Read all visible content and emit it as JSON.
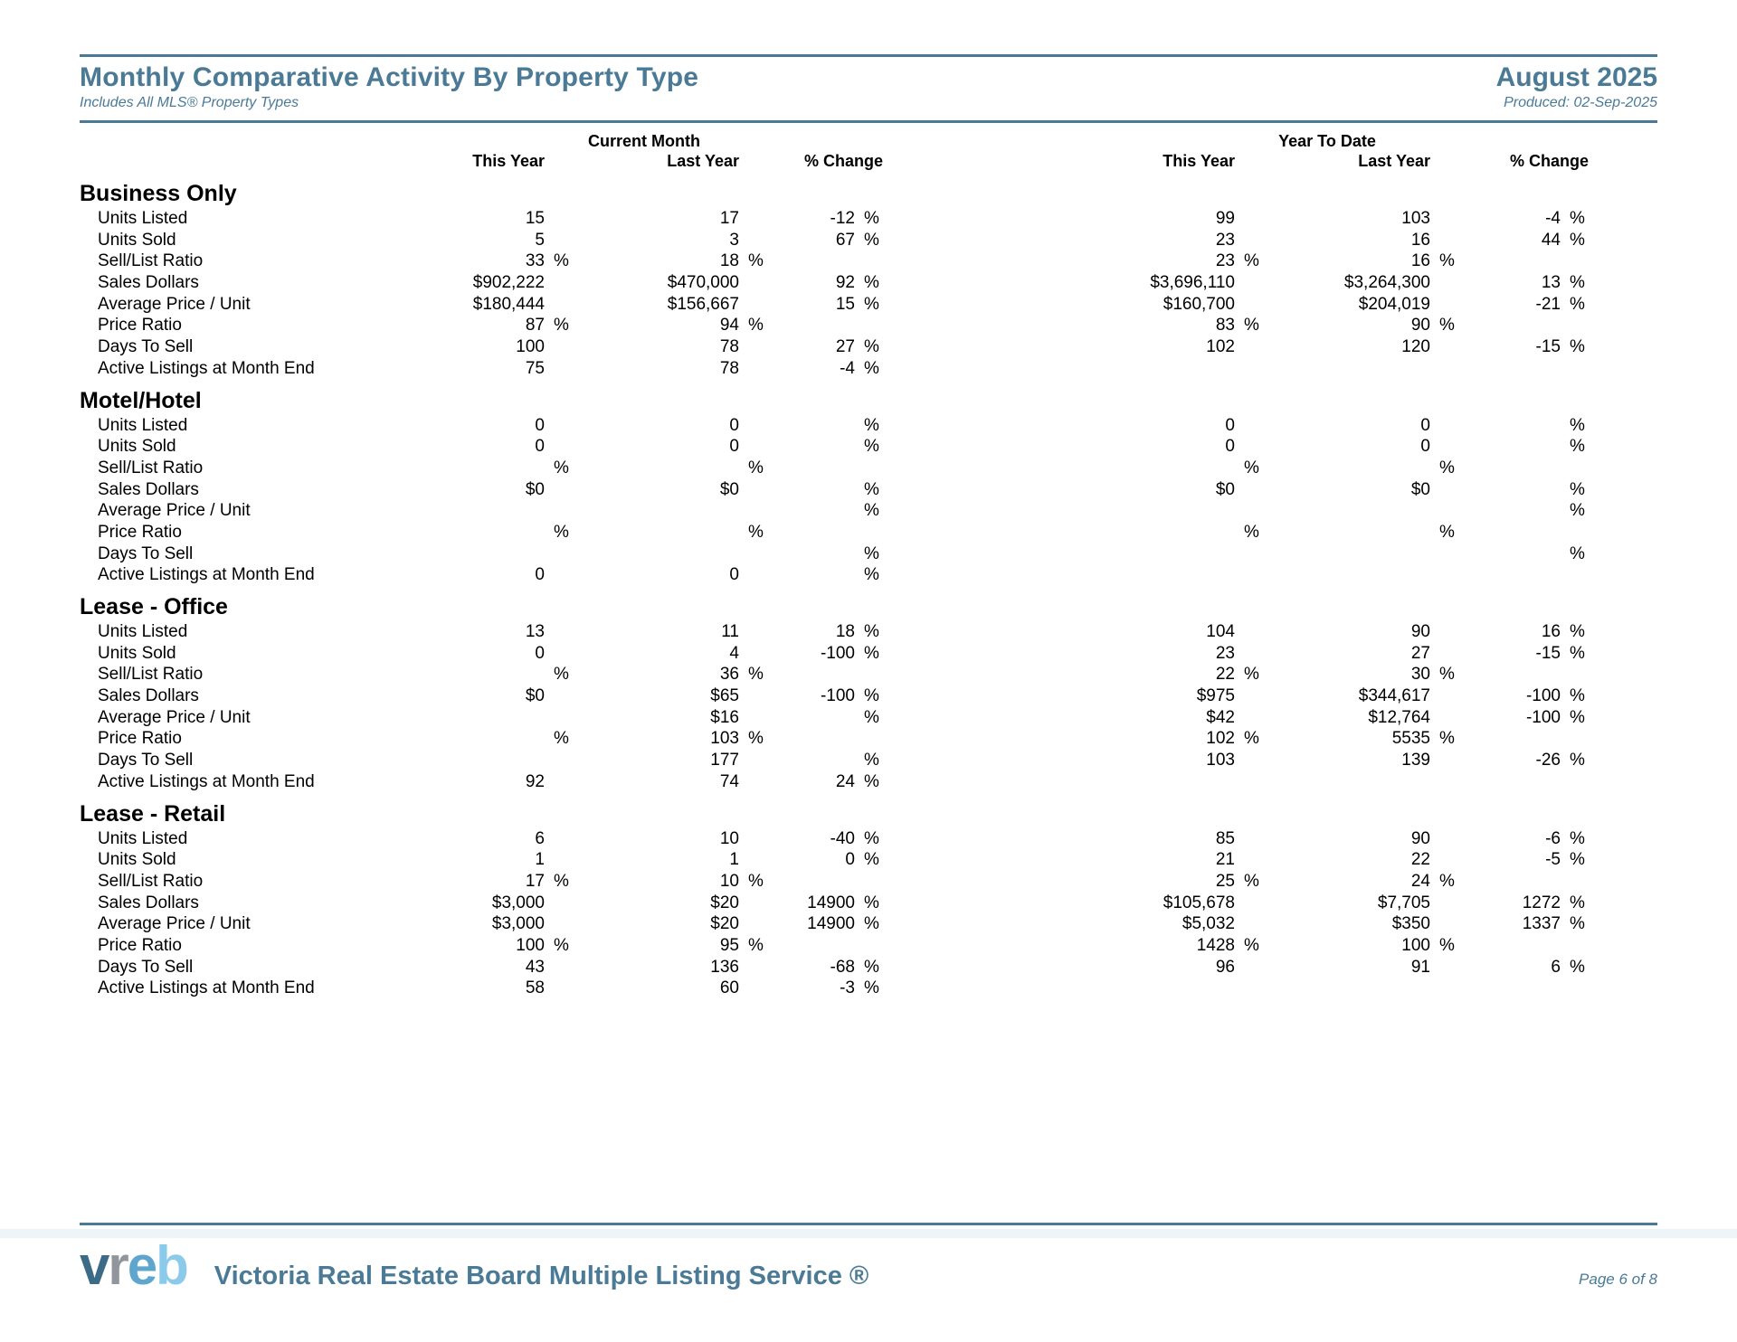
{
  "theme": {
    "accent": "#4a7a96"
  },
  "page": {
    "title": "Monthly Comparative Activity By Property Type",
    "subtitle": "Includes All MLS® Property Types",
    "period": "August 2025",
    "produced": "Produced: 02-Sep-2025"
  },
  "table": {
    "groups": [
      "Current Month",
      "Year To Date"
    ],
    "columns": [
      "This Year",
      "Last Year",
      "% Change"
    ],
    "sections": [
      {
        "name": "Business Only",
        "rows": [
          {
            "label": "Units Listed",
            "cm": [
              [
                "15",
                ""
              ],
              [
                "17",
                ""
              ],
              [
                "-12",
                "%"
              ]
            ],
            "ytd": [
              [
                "99",
                ""
              ],
              [
                "103",
                ""
              ],
              [
                "-4",
                "%"
              ]
            ]
          },
          {
            "label": "Units Sold",
            "cm": [
              [
                "5",
                ""
              ],
              [
                "3",
                ""
              ],
              [
                "67",
                "%"
              ]
            ],
            "ytd": [
              [
                "23",
                ""
              ],
              [
                "16",
                ""
              ],
              [
                "44",
                "%"
              ]
            ]
          },
          {
            "label": "Sell/List Ratio",
            "cm": [
              [
                "33",
                "%"
              ],
              [
                "18",
                "%"
              ],
              [
                "",
                ""
              ]
            ],
            "ytd": [
              [
                "23",
                "%"
              ],
              [
                "16",
                "%"
              ],
              [
                "",
                ""
              ]
            ]
          },
          {
            "label": "Sales Dollars",
            "cm": [
              [
                "$902,222",
                ""
              ],
              [
                "$470,000",
                ""
              ],
              [
                "92",
                "%"
              ]
            ],
            "ytd": [
              [
                "$3,696,110",
                ""
              ],
              [
                "$3,264,300",
                ""
              ],
              [
                "13",
                "%"
              ]
            ]
          },
          {
            "label": "Average Price / Unit",
            "cm": [
              [
                "$180,444",
                ""
              ],
              [
                "$156,667",
                ""
              ],
              [
                "15",
                "%"
              ]
            ],
            "ytd": [
              [
                "$160,700",
                ""
              ],
              [
                "$204,019",
                ""
              ],
              [
                "-21",
                "%"
              ]
            ]
          },
          {
            "label": "Price Ratio",
            "cm": [
              [
                "87",
                "%"
              ],
              [
                "94",
                "%"
              ],
              [
                "",
                ""
              ]
            ],
            "ytd": [
              [
                "83",
                "%"
              ],
              [
                "90",
                "%"
              ],
              [
                "",
                ""
              ]
            ]
          },
          {
            "label": "Days To Sell",
            "cm": [
              [
                "100",
                ""
              ],
              [
                "78",
                ""
              ],
              [
                "27",
                "%"
              ]
            ],
            "ytd": [
              [
                "102",
                ""
              ],
              [
                "120",
                ""
              ],
              [
                "-15",
                "%"
              ]
            ]
          },
          {
            "label": "Active Listings at Month End",
            "cm": [
              [
                "75",
                ""
              ],
              [
                "78",
                ""
              ],
              [
                "-4",
                "%"
              ]
            ],
            "ytd": [
              [
                "",
                ""
              ],
              [
                "",
                ""
              ],
              [
                "",
                ""
              ]
            ]
          }
        ]
      },
      {
        "name": "Motel/Hotel",
        "rows": [
          {
            "label": "Units Listed",
            "cm": [
              [
                "0",
                ""
              ],
              [
                "0",
                ""
              ],
              [
                "",
                "%"
              ]
            ],
            "ytd": [
              [
                "0",
                ""
              ],
              [
                "0",
                ""
              ],
              [
                "",
                "%"
              ]
            ]
          },
          {
            "label": "Units Sold",
            "cm": [
              [
                "0",
                ""
              ],
              [
                "0",
                ""
              ],
              [
                "",
                "%"
              ]
            ],
            "ytd": [
              [
                "0",
                ""
              ],
              [
                "0",
                ""
              ],
              [
                "",
                "%"
              ]
            ]
          },
          {
            "label": "Sell/List Ratio",
            "cm": [
              [
                "",
                "%"
              ],
              [
                "",
                "%"
              ],
              [
                "",
                ""
              ]
            ],
            "ytd": [
              [
                "",
                "%"
              ],
              [
                "",
                "%"
              ],
              [
                "",
                ""
              ]
            ]
          },
          {
            "label": "Sales Dollars",
            "cm": [
              [
                "$0",
                ""
              ],
              [
                "$0",
                ""
              ],
              [
                "",
                "%"
              ]
            ],
            "ytd": [
              [
                "$0",
                ""
              ],
              [
                "$0",
                ""
              ],
              [
                "",
                "%"
              ]
            ]
          },
          {
            "label": "Average Price / Unit",
            "cm": [
              [
                "",
                ""
              ],
              [
                "",
                ""
              ],
              [
                "",
                "%"
              ]
            ],
            "ytd": [
              [
                "",
                ""
              ],
              [
                "",
                ""
              ],
              [
                "",
                "%"
              ]
            ]
          },
          {
            "label": "Price Ratio",
            "cm": [
              [
                "",
                "%"
              ],
              [
                "",
                "%"
              ],
              [
                "",
                ""
              ]
            ],
            "ytd": [
              [
                "",
                "%"
              ],
              [
                "",
                "%"
              ],
              [
                "",
                ""
              ]
            ]
          },
          {
            "label": "Days To Sell",
            "cm": [
              [
                "",
                ""
              ],
              [
                "",
                ""
              ],
              [
                "",
                "%"
              ]
            ],
            "ytd": [
              [
                "",
                ""
              ],
              [
                "",
                ""
              ],
              [
                "",
                "%"
              ]
            ]
          },
          {
            "label": "Active Listings at Month End",
            "cm": [
              [
                "0",
                ""
              ],
              [
                "0",
                ""
              ],
              [
                "",
                "%"
              ]
            ],
            "ytd": [
              [
                "",
                ""
              ],
              [
                "",
                ""
              ],
              [
                "",
                ""
              ]
            ]
          }
        ]
      },
      {
        "name": "Lease - Office",
        "rows": [
          {
            "label": "Units Listed",
            "cm": [
              [
                "13",
                ""
              ],
              [
                "11",
                ""
              ],
              [
                "18",
                "%"
              ]
            ],
            "ytd": [
              [
                "104",
                ""
              ],
              [
                "90",
                ""
              ],
              [
                "16",
                "%"
              ]
            ]
          },
          {
            "label": "Units Sold",
            "cm": [
              [
                "0",
                ""
              ],
              [
                "4",
                ""
              ],
              [
                "-100",
                "%"
              ]
            ],
            "ytd": [
              [
                "23",
                ""
              ],
              [
                "27",
                ""
              ],
              [
                "-15",
                "%"
              ]
            ]
          },
          {
            "label": "Sell/List Ratio",
            "cm": [
              [
                "",
                "%"
              ],
              [
                "36",
                "%"
              ],
              [
                "",
                ""
              ]
            ],
            "ytd": [
              [
                "22",
                "%"
              ],
              [
                "30",
                "%"
              ],
              [
                "",
                ""
              ]
            ]
          },
          {
            "label": "Sales Dollars",
            "cm": [
              [
                "$0",
                ""
              ],
              [
                "$65",
                ""
              ],
              [
                "-100",
                "%"
              ]
            ],
            "ytd": [
              [
                "$975",
                ""
              ],
              [
                "$344,617",
                ""
              ],
              [
                "-100",
                "%"
              ]
            ]
          },
          {
            "label": "Average Price / Unit",
            "cm": [
              [
                "",
                ""
              ],
              [
                "$16",
                ""
              ],
              [
                "",
                "%"
              ]
            ],
            "ytd": [
              [
                "$42",
                ""
              ],
              [
                "$12,764",
                ""
              ],
              [
                "-100",
                "%"
              ]
            ]
          },
          {
            "label": "Price Ratio",
            "cm": [
              [
                "",
                "%"
              ],
              [
                "103",
                "%"
              ],
              [
                "",
                ""
              ]
            ],
            "ytd": [
              [
                "102",
                "%"
              ],
              [
                "5535",
                "%"
              ],
              [
                "",
                ""
              ]
            ]
          },
          {
            "label": "Days To Sell",
            "cm": [
              [
                "",
                ""
              ],
              [
                "177",
                ""
              ],
              [
                "",
                "%"
              ]
            ],
            "ytd": [
              [
                "103",
                ""
              ],
              [
                "139",
                ""
              ],
              [
                "-26",
                "%"
              ]
            ]
          },
          {
            "label": "Active Listings at Month End",
            "cm": [
              [
                "92",
                ""
              ],
              [
                "74",
                ""
              ],
              [
                "24",
                "%"
              ]
            ],
            "ytd": [
              [
                "",
                ""
              ],
              [
                "",
                ""
              ],
              [
                "",
                ""
              ]
            ]
          }
        ]
      },
      {
        "name": "Lease - Retail",
        "rows": [
          {
            "label": "Units Listed",
            "cm": [
              [
                "6",
                ""
              ],
              [
                "10",
                ""
              ],
              [
                "-40",
                "%"
              ]
            ],
            "ytd": [
              [
                "85",
                ""
              ],
              [
                "90",
                ""
              ],
              [
                "-6",
                "%"
              ]
            ]
          },
          {
            "label": "Units Sold",
            "cm": [
              [
                "1",
                ""
              ],
              [
                "1",
                ""
              ],
              [
                "0",
                "%"
              ]
            ],
            "ytd": [
              [
                "21",
                ""
              ],
              [
                "22",
                ""
              ],
              [
                "-5",
                "%"
              ]
            ]
          },
          {
            "label": "Sell/List Ratio",
            "cm": [
              [
                "17",
                "%"
              ],
              [
                "10",
                "%"
              ],
              [
                "",
                ""
              ]
            ],
            "ytd": [
              [
                "25",
                "%"
              ],
              [
                "24",
                "%"
              ],
              [
                "",
                ""
              ]
            ]
          },
          {
            "label": "Sales Dollars",
            "cm": [
              [
                "$3,000",
                ""
              ],
              [
                "$20",
                ""
              ],
              [
                "14900",
                "%"
              ]
            ],
            "ytd": [
              [
                "$105,678",
                ""
              ],
              [
                "$7,705",
                ""
              ],
              [
                "1272",
                "%"
              ]
            ]
          },
          {
            "label": "Average Price / Unit",
            "cm": [
              [
                "$3,000",
                ""
              ],
              [
                "$20",
                ""
              ],
              [
                "14900",
                "%"
              ]
            ],
            "ytd": [
              [
                "$5,032",
                ""
              ],
              [
                "$350",
                ""
              ],
              [
                "1337",
                "%"
              ]
            ]
          },
          {
            "label": "Price Ratio",
            "cm": [
              [
                "100",
                "%"
              ],
              [
                "95",
                "%"
              ],
              [
                "",
                ""
              ]
            ],
            "ytd": [
              [
                "1428",
                "%"
              ],
              [
                "100",
                "%"
              ],
              [
                "",
                ""
              ]
            ]
          },
          {
            "label": "Days To Sell",
            "cm": [
              [
                "43",
                ""
              ],
              [
                "136",
                ""
              ],
              [
                "-68",
                "%"
              ]
            ],
            "ytd": [
              [
                "96",
                ""
              ],
              [
                "91",
                ""
              ],
              [
                "6",
                "%"
              ]
            ]
          },
          {
            "label": "Active Listings at Month End",
            "cm": [
              [
                "58",
                ""
              ],
              [
                "60",
                ""
              ],
              [
                "-3",
                "%"
              ]
            ],
            "ytd": [
              [
                "",
                ""
              ],
              [
                "",
                ""
              ],
              [
                "",
                ""
              ]
            ]
          }
        ]
      }
    ]
  },
  "footer": {
    "logo": {
      "letters": [
        {
          "ch": "v",
          "color": "#3b6b86"
        },
        {
          "ch": "r",
          "color": "#90969c"
        },
        {
          "ch": "e",
          "color": "#5fa6cf"
        },
        {
          "ch": "b",
          "color": "#8ccaec"
        }
      ]
    },
    "service_text": "Victoria Real Estate Board Multiple Listing Service ®",
    "page_label": "Page 6 of 8"
  }
}
